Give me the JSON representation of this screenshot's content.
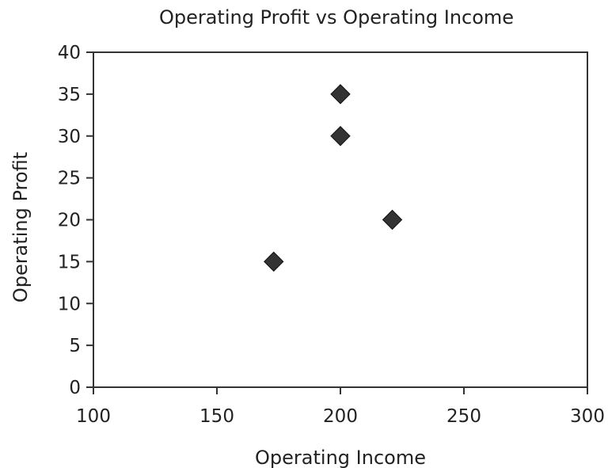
{
  "chart_data": {
    "type": "scatter",
    "title": "Operating Profit vs Operating Income",
    "xlabel": "Operating Income",
    "ylabel": "Operating Profit",
    "xlim": [
      100,
      300
    ],
    "ylim": [
      0,
      40
    ],
    "xticks": [
      100,
      150,
      200,
      250,
      300
    ],
    "yticks": [
      0,
      5,
      10,
      15,
      20,
      25,
      30,
      35,
      40
    ],
    "grid": false,
    "marker": "diamond",
    "marker_color": "#333333",
    "points": [
      {
        "x": 200,
        "y": 35
      },
      {
        "x": 200,
        "y": 30
      },
      {
        "x": 221,
        "y": 20
      },
      {
        "x": 173,
        "y": 15
      }
    ]
  }
}
